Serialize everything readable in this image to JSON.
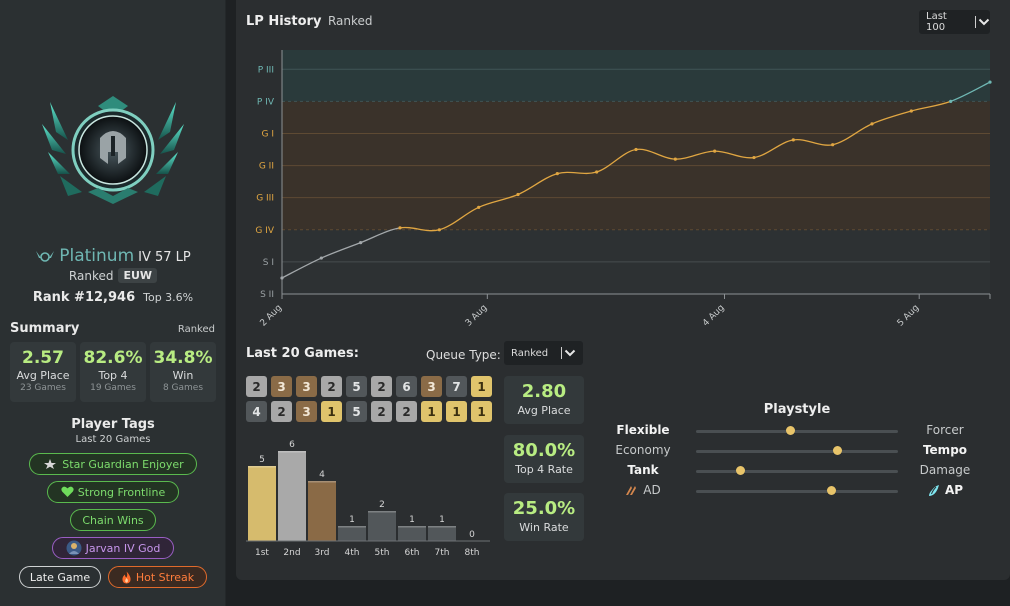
{
  "profile": {
    "tier": "Platinum",
    "division_lp": "IV 57 LP",
    "queue": "Ranked",
    "region": "EUW",
    "rank": "Rank #12,946",
    "top_percent": "Top 3.6%"
  },
  "summary": {
    "title": "Summary",
    "mode": "Ranked",
    "stats": [
      {
        "value": "2.57",
        "label": "Avg Place",
        "sub": "23 Games"
      },
      {
        "value": "82.6%",
        "label": "Top 4",
        "sub": "19 Games"
      },
      {
        "value": "34.8%",
        "label": "Win",
        "sub": "8 Games"
      }
    ]
  },
  "tags": {
    "title": "Player Tags",
    "subtitle": "Last 20 Games",
    "items": [
      {
        "label": "Star Guardian Enjoyer",
        "icon": "star-guardian-icon"
      },
      {
        "label": "Strong Frontline",
        "icon": "heart-icon"
      },
      {
        "label": "Chain Wins",
        "icon": ""
      },
      {
        "label": "Jarvan IV God",
        "icon": "champion-avatar-icon"
      },
      {
        "label": "Late Game",
        "icon": ""
      },
      {
        "label": "Hot Streak",
        "icon": "fire-icon"
      }
    ]
  },
  "lp_history": {
    "title": "LP History",
    "subtitle": "Ranked",
    "range_select": "Last 100"
  },
  "chart_data": {
    "type": "line",
    "y_tier_labels": [
      "P III",
      "P IV",
      "G I",
      "G II",
      "G III",
      "G IV",
      "S I",
      "S II"
    ],
    "x_tick_labels": [
      "2 Aug",
      "3 Aug",
      "4 Aug",
      "5 Aug"
    ],
    "y_scale": "rank steps from S II (0) to P III (7)",
    "ylim": [
      0,
      7.6
    ],
    "series": [
      {
        "x": [
          0,
          1,
          2,
          3,
          4,
          5,
          6,
          7,
          8,
          9,
          10,
          11,
          12,
          13,
          14,
          15,
          16,
          17,
          18
        ],
        "y": [
          0.5,
          1.12,
          1.6,
          2.06,
          2.0,
          2.7,
          3.1,
          3.75,
          3.8,
          4.5,
          4.2,
          4.45,
          4.25,
          4.8,
          4.65,
          5.3,
          5.7,
          6.0,
          6.6
        ]
      }
    ],
    "grid": true
  },
  "games": {
    "title": "Last 20 Games:",
    "queue_label": "Queue Type:",
    "queue_value": "Ranked",
    "placements": [
      2,
      3,
      3,
      2,
      5,
      2,
      6,
      3,
      7,
      1,
      4,
      2,
      3,
      1,
      5,
      2,
      2,
      1,
      1,
      1
    ]
  },
  "placement_histogram": {
    "type": "bar",
    "categories": [
      "1st",
      "2nd",
      "3rd",
      "4th",
      "5th",
      "6th",
      "7th",
      "8th"
    ],
    "values": [
      5,
      6,
      4,
      1,
      2,
      1,
      1,
      0
    ],
    "colors": [
      "#d6bb6d",
      "#a9a9a9",
      "#8a6a46",
      "#52575a",
      "#52575a",
      "#52575a",
      "#52575a",
      "#52575a"
    ]
  },
  "game_stats": [
    {
      "value": "2.80",
      "label": "Avg Place"
    },
    {
      "value": "80.0%",
      "label": "Top 4 Rate"
    },
    {
      "value": "25.0%",
      "label": "Win Rate"
    }
  ],
  "playstyle": {
    "title": "Playstyle",
    "rows": [
      {
        "left": "Flexible",
        "right": "Forcer",
        "value": 0.47,
        "bold": "left"
      },
      {
        "left": "Economy",
        "right": "Tempo",
        "value": 0.7,
        "bold": "right"
      },
      {
        "left": "Tank",
        "right": "Damage",
        "value": 0.22,
        "bold": "left"
      },
      {
        "left": "AD",
        "right": "AP",
        "value": 0.67,
        "bold": "right"
      }
    ]
  },
  "colors": {
    "accent_green": "#b8ec82",
    "platinum": "#6fb7b3",
    "gold_line": "#e0a642"
  }
}
